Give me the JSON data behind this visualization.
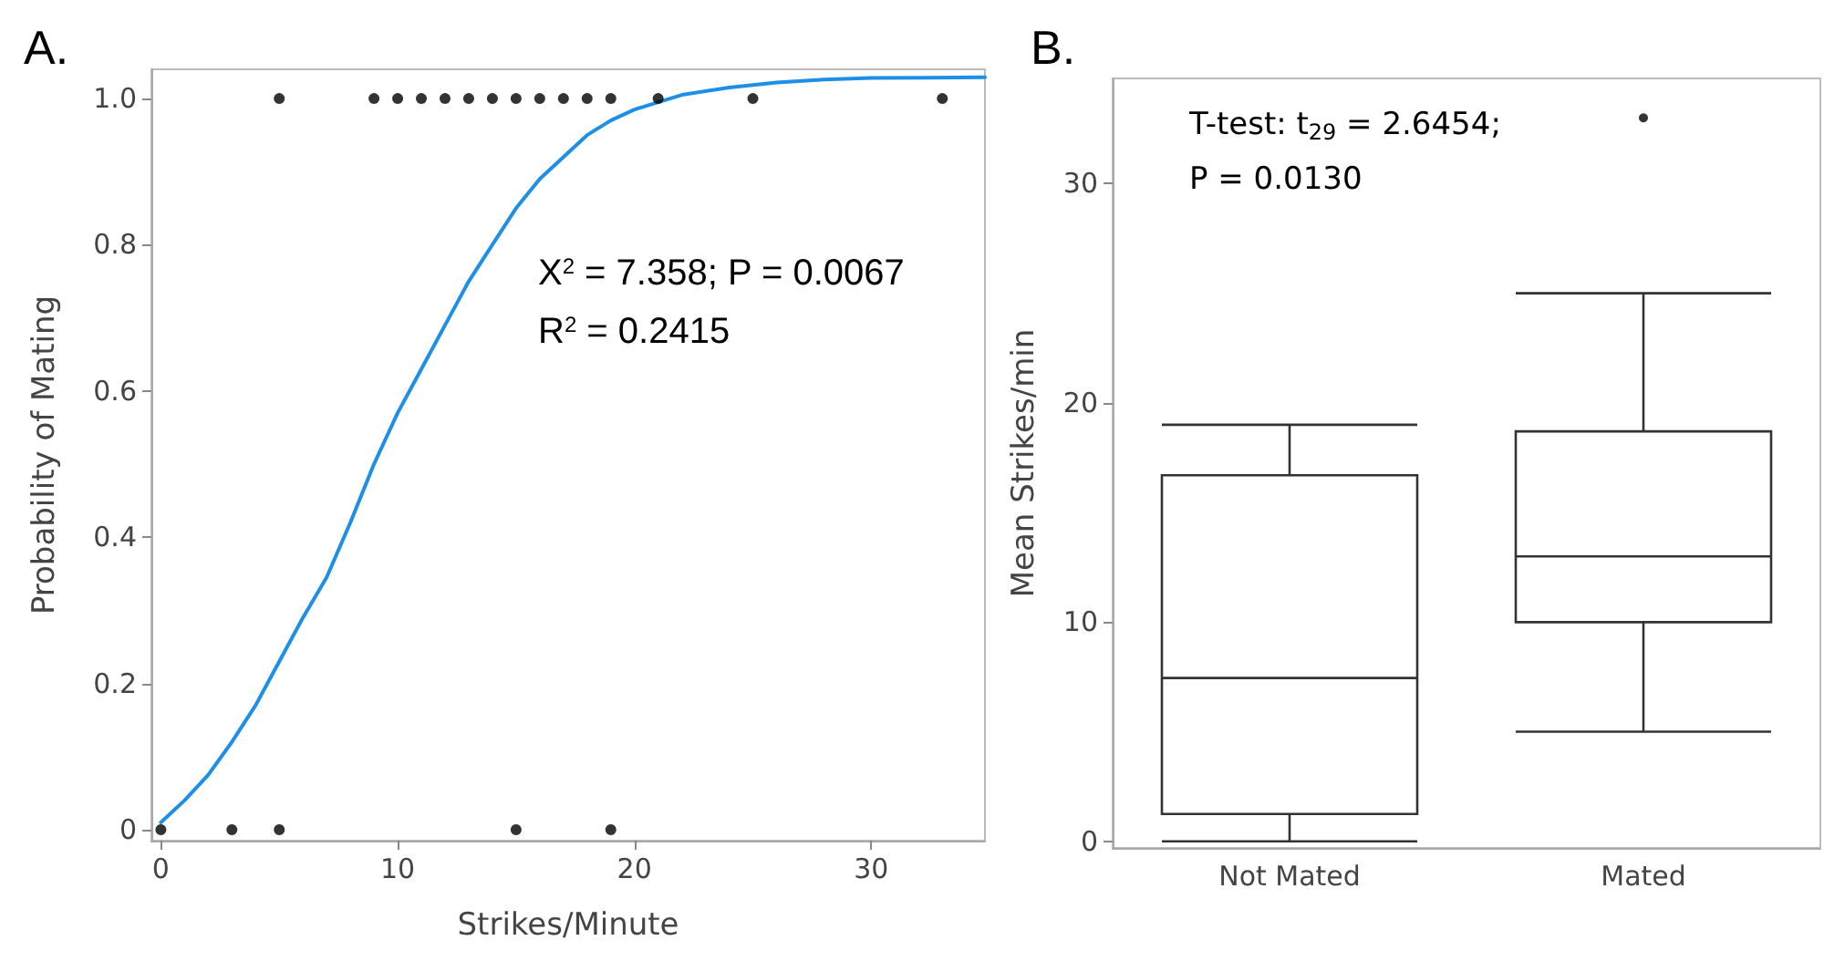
{
  "chart_data": [
    {
      "type": "scatter",
      "title": "A.",
      "xlabel": "Strikes/Minute",
      "ylabel": "Probability of Mating",
      "series": [
        {
          "type": "scatter",
          "color": "#000000",
          "marker": "circle",
          "x": [
            5,
            9,
            10,
            11,
            12,
            13,
            14,
            15,
            16,
            17,
            18,
            19,
            21,
            25,
            33,
            0,
            3,
            5,
            15,
            19
          ],
          "values": [
            1,
            1,
            1,
            1,
            1,
            1,
            1,
            1,
            1,
            1,
            1,
            1,
            1,
            1,
            1,
            0,
            0,
            0,
            0,
            0
          ]
        },
        {
          "type": "line",
          "color": "#1e8fe6",
          "marker": "none",
          "x": [
            0,
            1,
            2,
            3,
            4,
            5,
            6,
            7,
            8,
            9,
            10,
            11,
            12,
            13,
            14,
            15,
            16,
            17,
            18,
            19,
            20,
            22,
            24,
            26,
            28,
            30,
            34.8
          ],
          "values": [
            0.01,
            0.04,
            0.075,
            0.12,
            0.17,
            0.23,
            0.29,
            0.345,
            0.42,
            0.5,
            0.57,
            0.63,
            0.69,
            0.75,
            0.8,
            0.85,
            0.89,
            0.92,
            0.95,
            0.97,
            0.985,
            1.005,
            1.015,
            1.022,
            1.026,
            1.028,
            1.029
          ]
        }
      ],
      "xlim": [
        -0.4,
        34.8
      ],
      "xticks": [
        0,
        10,
        20,
        30
      ],
      "ylim": [
        -0.015,
        1.04
      ],
      "yticks": [
        0,
        0.2,
        0.4,
        0.6,
        0.8,
        {
          "value": 1,
          "label": "1.0"
        }
      ],
      "grid": false,
      "annotations": [
        "X$^{2}$ = 7.358; P = 0.0067",
        "R$^{2}$ = 0.2415"
      ]
    },
    {
      "type": "box",
      "title": "B.",
      "ylabel": "Mean Strikes/min",
      "categories": [
        "Not Mated",
        "Mated"
      ],
      "boxes": [
        {
          "low": 0,
          "q1": 1.25,
          "median": 7.45,
          "q3": 16.7,
          "high": 19
        },
        {
          "low": 5,
          "q1": 10,
          "median": 13,
          "q3": 18.7,
          "high": 25,
          "outliers": [
            33
          ]
        }
      ],
      "color": "#333333",
      "ylim": [
        -0.3,
        34.8
      ],
      "yticks": [
        0,
        10,
        20,
        30
      ],
      "grid": false,
      "annotations": [
        "T-test: t$_{29}$ = 2.6454;",
        "P = 0.0130"
      ]
    }
  ]
}
